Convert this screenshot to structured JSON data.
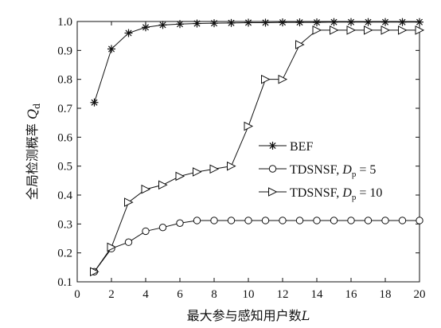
{
  "chart_data": {
    "type": "line",
    "title": "",
    "xlabel": "最大参与感知用户数",
    "xlabel_var": "L",
    "ylabel": "全局检测概率 ",
    "ylabel_var": "Q",
    "ylabel_sub": "d",
    "xlim": [
      0,
      20
    ],
    "ylim": [
      0.1,
      1.0
    ],
    "xticks": [
      0,
      2,
      4,
      6,
      8,
      10,
      12,
      14,
      16,
      18,
      20
    ],
    "yticks": [
      0.1,
      0.2,
      0.3,
      0.4,
      0.5,
      0.6,
      0.7,
      0.8,
      0.9,
      1.0
    ],
    "ytick_labels": [
      "0.1",
      "0.2",
      "0.3",
      "0.4",
      "0.5",
      "0.6",
      "0.7",
      "0.8",
      "0.9",
      "1.0"
    ],
    "grid": false,
    "legend_position": "right-middle",
    "x": [
      1,
      2,
      3,
      4,
      5,
      6,
      7,
      8,
      9,
      10,
      11,
      12,
      13,
      14,
      15,
      16,
      17,
      18,
      19,
      20
    ],
    "series": [
      {
        "name": "BEF",
        "label_parts": [
          "BEF"
        ],
        "marker": "star",
        "values": [
          0.72,
          0.905,
          0.96,
          0.98,
          0.988,
          0.991,
          0.993,
          0.994,
          0.995,
          0.996,
          0.996,
          0.997,
          0.997,
          0.997,
          0.998,
          0.998,
          0.998,
          0.998,
          0.998,
          0.998
        ]
      },
      {
        "name": "TDSNSF, Dp = 5",
        "label_parts": [
          "TDSNSF, ",
          "D",
          "p",
          " = 5"
        ],
        "marker": "circle",
        "values": [
          0.135,
          0.215,
          0.237,
          0.275,
          0.288,
          0.303,
          0.312,
          0.312,
          0.312,
          0.312,
          0.312,
          0.312,
          0.312,
          0.312,
          0.312,
          0.312,
          0.312,
          0.312,
          0.312,
          0.312
        ]
      },
      {
        "name": "TDSNSF, Dp = 10",
        "label_parts": [
          "TDSNSF, ",
          "D",
          "p",
          " = 10"
        ],
        "marker": "triangle-right",
        "values": [
          0.135,
          0.22,
          0.375,
          0.42,
          0.435,
          0.465,
          0.48,
          0.49,
          0.5,
          0.638,
          0.8,
          0.8,
          0.92,
          0.97,
          0.97,
          0.97,
          0.97,
          0.97,
          0.97,
          0.97
        ]
      }
    ]
  }
}
